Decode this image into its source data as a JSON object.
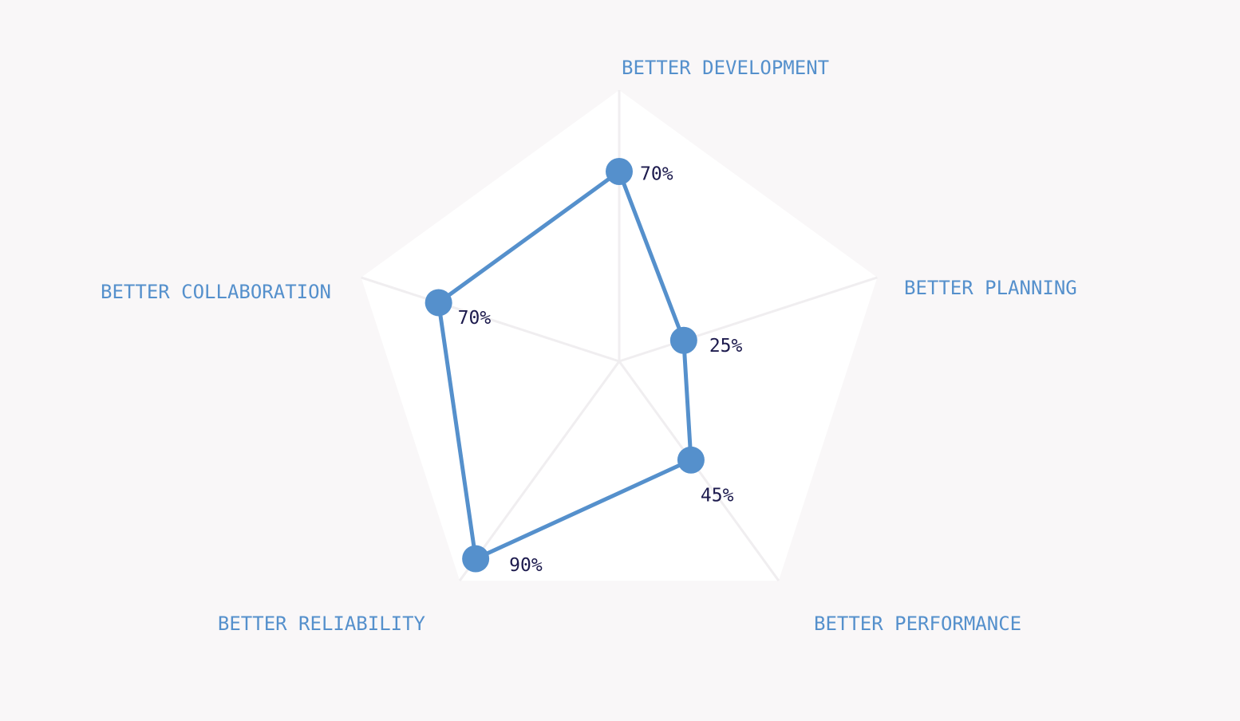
{
  "chart_data": {
    "type": "radar",
    "categories": [
      "BETTER DEVELOPMENT",
      "BETTER PLANNING",
      "BETTER PERFORMANCE",
      "BETTER RELIABILITY",
      "BETTER COLLABORATION"
    ],
    "series": [
      {
        "values": [
          70,
          25,
          45,
          90,
          70
        ],
        "labels": [
          "70%",
          "25%",
          "45%",
          "90%",
          "70%"
        ]
      }
    ],
    "range": [
      0,
      100
    ],
    "grid": false,
    "colors": {
      "background": "#f9f7f8",
      "pentagon_fill": "#ffffff",
      "spokes": "#f0eef0",
      "series": "#5590cc",
      "axis_label": "#5590cc",
      "value_label": "#1c1a4d"
    }
  }
}
